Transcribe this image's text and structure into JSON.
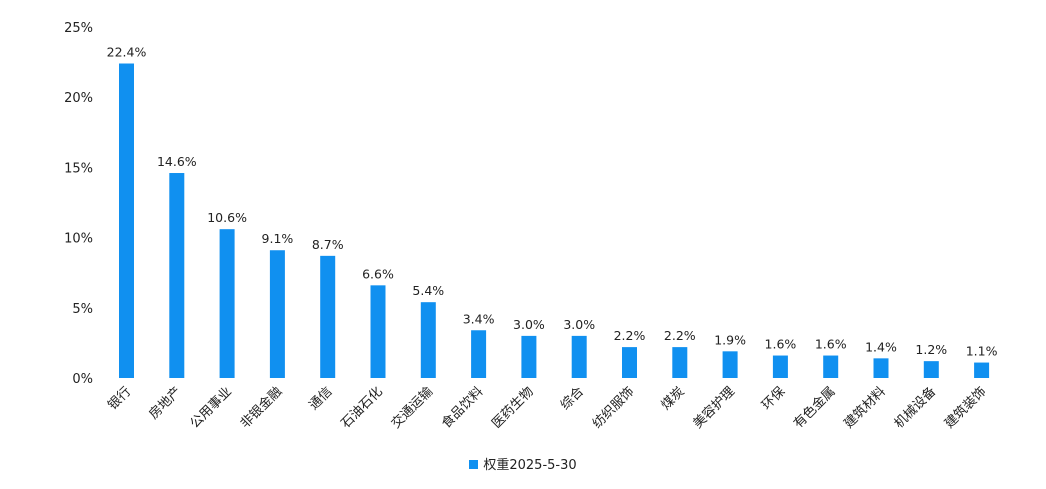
{
  "chart_data": {
    "type": "bar",
    "categories": [
      "银行",
      "房地产",
      "公用事业",
      "非银金融",
      "通信",
      "石油石化",
      "交通运输",
      "食品饮料",
      "医药生物",
      "综合",
      "纺织服饰",
      "煤炭",
      "美容护理",
      "环保",
      "有色金属",
      "建筑材料",
      "机械设备",
      "建筑装饰"
    ],
    "series": [
      {
        "name": "权重2025-5-30",
        "values": [
          22.4,
          14.6,
          10.6,
          9.1,
          8.7,
          6.6,
          5.4,
          3.4,
          3.0,
          3.0,
          2.2,
          2.2,
          1.9,
          1.6,
          1.6,
          1.4,
          1.2,
          1.1
        ],
        "labels": [
          "22.4%",
          "14.6%",
          "10.6%",
          "9.1%",
          "8.7%",
          "6.6%",
          "5.4%",
          "3.4%",
          "3.0%",
          "3.0%",
          "2.2%",
          "2.2%",
          "1.9%",
          "1.6%",
          "1.6%",
          "1.4%",
          "1.2%",
          "1.1%"
        ]
      }
    ],
    "ylim": [
      0,
      25
    ],
    "yticks": [
      "0%",
      "5%",
      "10%",
      "15%",
      "20%",
      "25%"
    ],
    "grid": false,
    "legend_position": "bottom",
    "colors": {
      "bar": "#1090f0"
    }
  },
  "legend": {
    "label": "权重2025-5-30"
  }
}
